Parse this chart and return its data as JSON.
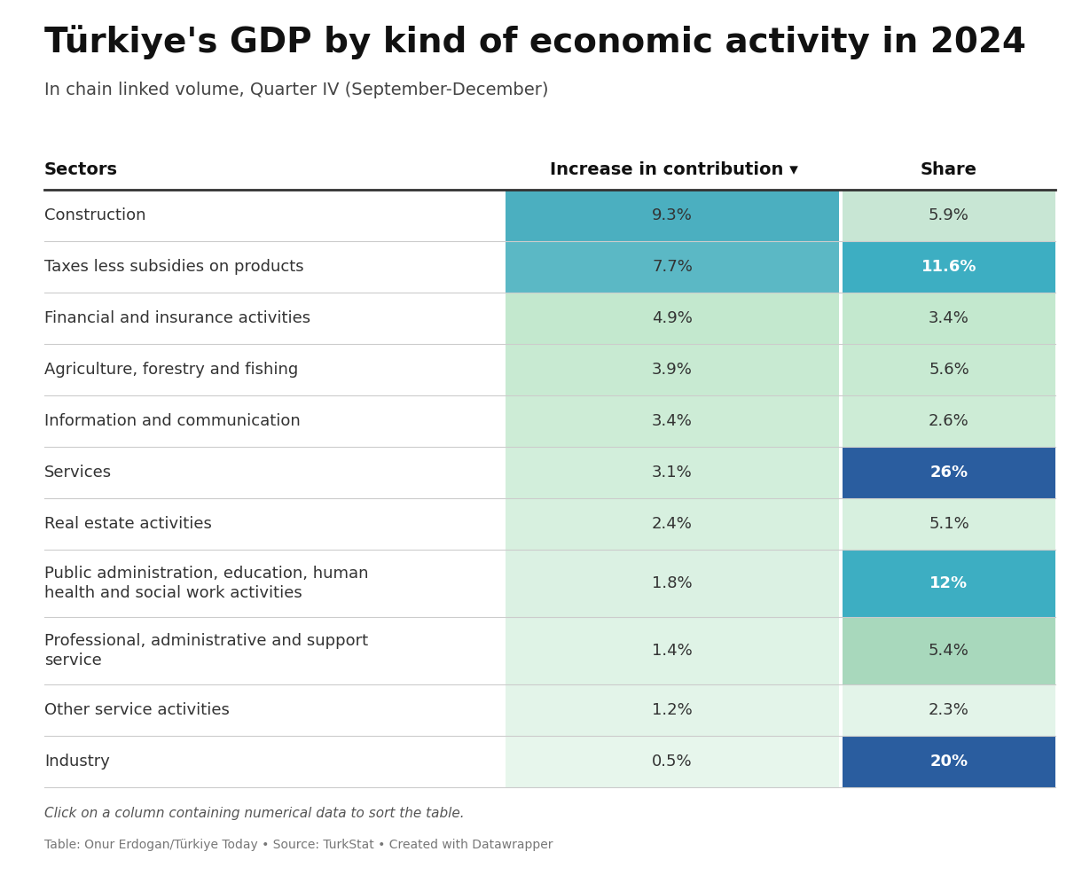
{
  "title": "Türkiye's GDP by kind of economic activity in 2024",
  "subtitle": "In chain linked volume, Quarter IV (September-December)",
  "col_headers": [
    "Sectors",
    "Increase in contribution ▾",
    "Share"
  ],
  "rows": [
    {
      "sector": "Construction",
      "increase": "9.3%",
      "share": "5.9%",
      "increase_bg": "#4BAFC0",
      "share_bg": "#C8E6D4",
      "share_text_color": "#333333",
      "multiline": false
    },
    {
      "sector": "Taxes less subsidies on products",
      "increase": "7.7%",
      "share": "11.6%",
      "increase_bg": "#5BB8C5",
      "share_bg": "#3DAEC2",
      "share_text_color": "#ffffff",
      "multiline": false
    },
    {
      "sector": "Financial and insurance activities",
      "increase": "4.9%",
      "share": "3.4%",
      "increase_bg": "#C3E8CE",
      "share_bg": "#C3E8CE",
      "share_text_color": "#333333",
      "multiline": false
    },
    {
      "sector": "Agriculture, forestry and fishing",
      "increase": "3.9%",
      "share": "5.6%",
      "increase_bg": "#C8EAD2",
      "share_bg": "#C8EAD2",
      "share_text_color": "#333333",
      "multiline": false
    },
    {
      "sector": "Information and communication",
      "increase": "3.4%",
      "share": "2.6%",
      "increase_bg": "#CDECD6",
      "share_bg": "#CDECD6",
      "share_text_color": "#333333",
      "multiline": false
    },
    {
      "sector": "Services",
      "increase": "3.1%",
      "share": "26%",
      "increase_bg": "#D2EEDB",
      "share_bg": "#2A5D9F",
      "share_text_color": "#ffffff",
      "multiline": false
    },
    {
      "sector": "Real estate activities",
      "increase": "2.4%",
      "share": "5.1%",
      "increase_bg": "#D7F0DF",
      "share_bg": "#D7F0DF",
      "share_text_color": "#333333",
      "multiline": false
    },
    {
      "sector": "Public administration, education, human\nhealth and social work activities",
      "increase": "1.8%",
      "share": "12%",
      "increase_bg": "#DBF1E3",
      "share_bg": "#3DAEC2",
      "share_text_color": "#ffffff",
      "multiline": true
    },
    {
      "sector": "Professional, administrative and support\nservice",
      "increase": "1.4%",
      "share": "5.4%",
      "increase_bg": "#DFF3E6",
      "share_bg": "#A8D8BC",
      "share_text_color": "#333333",
      "multiline": true
    },
    {
      "sector": "Other service activities",
      "increase": "1.2%",
      "share": "2.3%",
      "increase_bg": "#E3F4E9",
      "share_bg": "#E3F4E9",
      "share_text_color": "#333333",
      "multiline": false
    },
    {
      "sector": "Industry",
      "increase": "0.5%",
      "share": "20%",
      "increase_bg": "#E7F6EC",
      "share_bg": "#2A5D9F",
      "share_text_color": "#ffffff",
      "multiline": false
    }
  ],
  "footer_note": "Click on a column containing numerical data to sort the table.",
  "footer_source": "Table: Onur Erdogan/Türkiye Today • Source: TurkStat • Created with Datawrapper",
  "bg_color": "#ffffff",
  "header_line_color": "#333333",
  "row_line_color": "#cccccc",
  "header_text_color": "#111111",
  "sector_text_color": "#333333",
  "data_text_color": "#333333",
  "title_fontsize": 28,
  "subtitle_fontsize": 14,
  "header_fontsize": 14,
  "data_fontsize": 13
}
